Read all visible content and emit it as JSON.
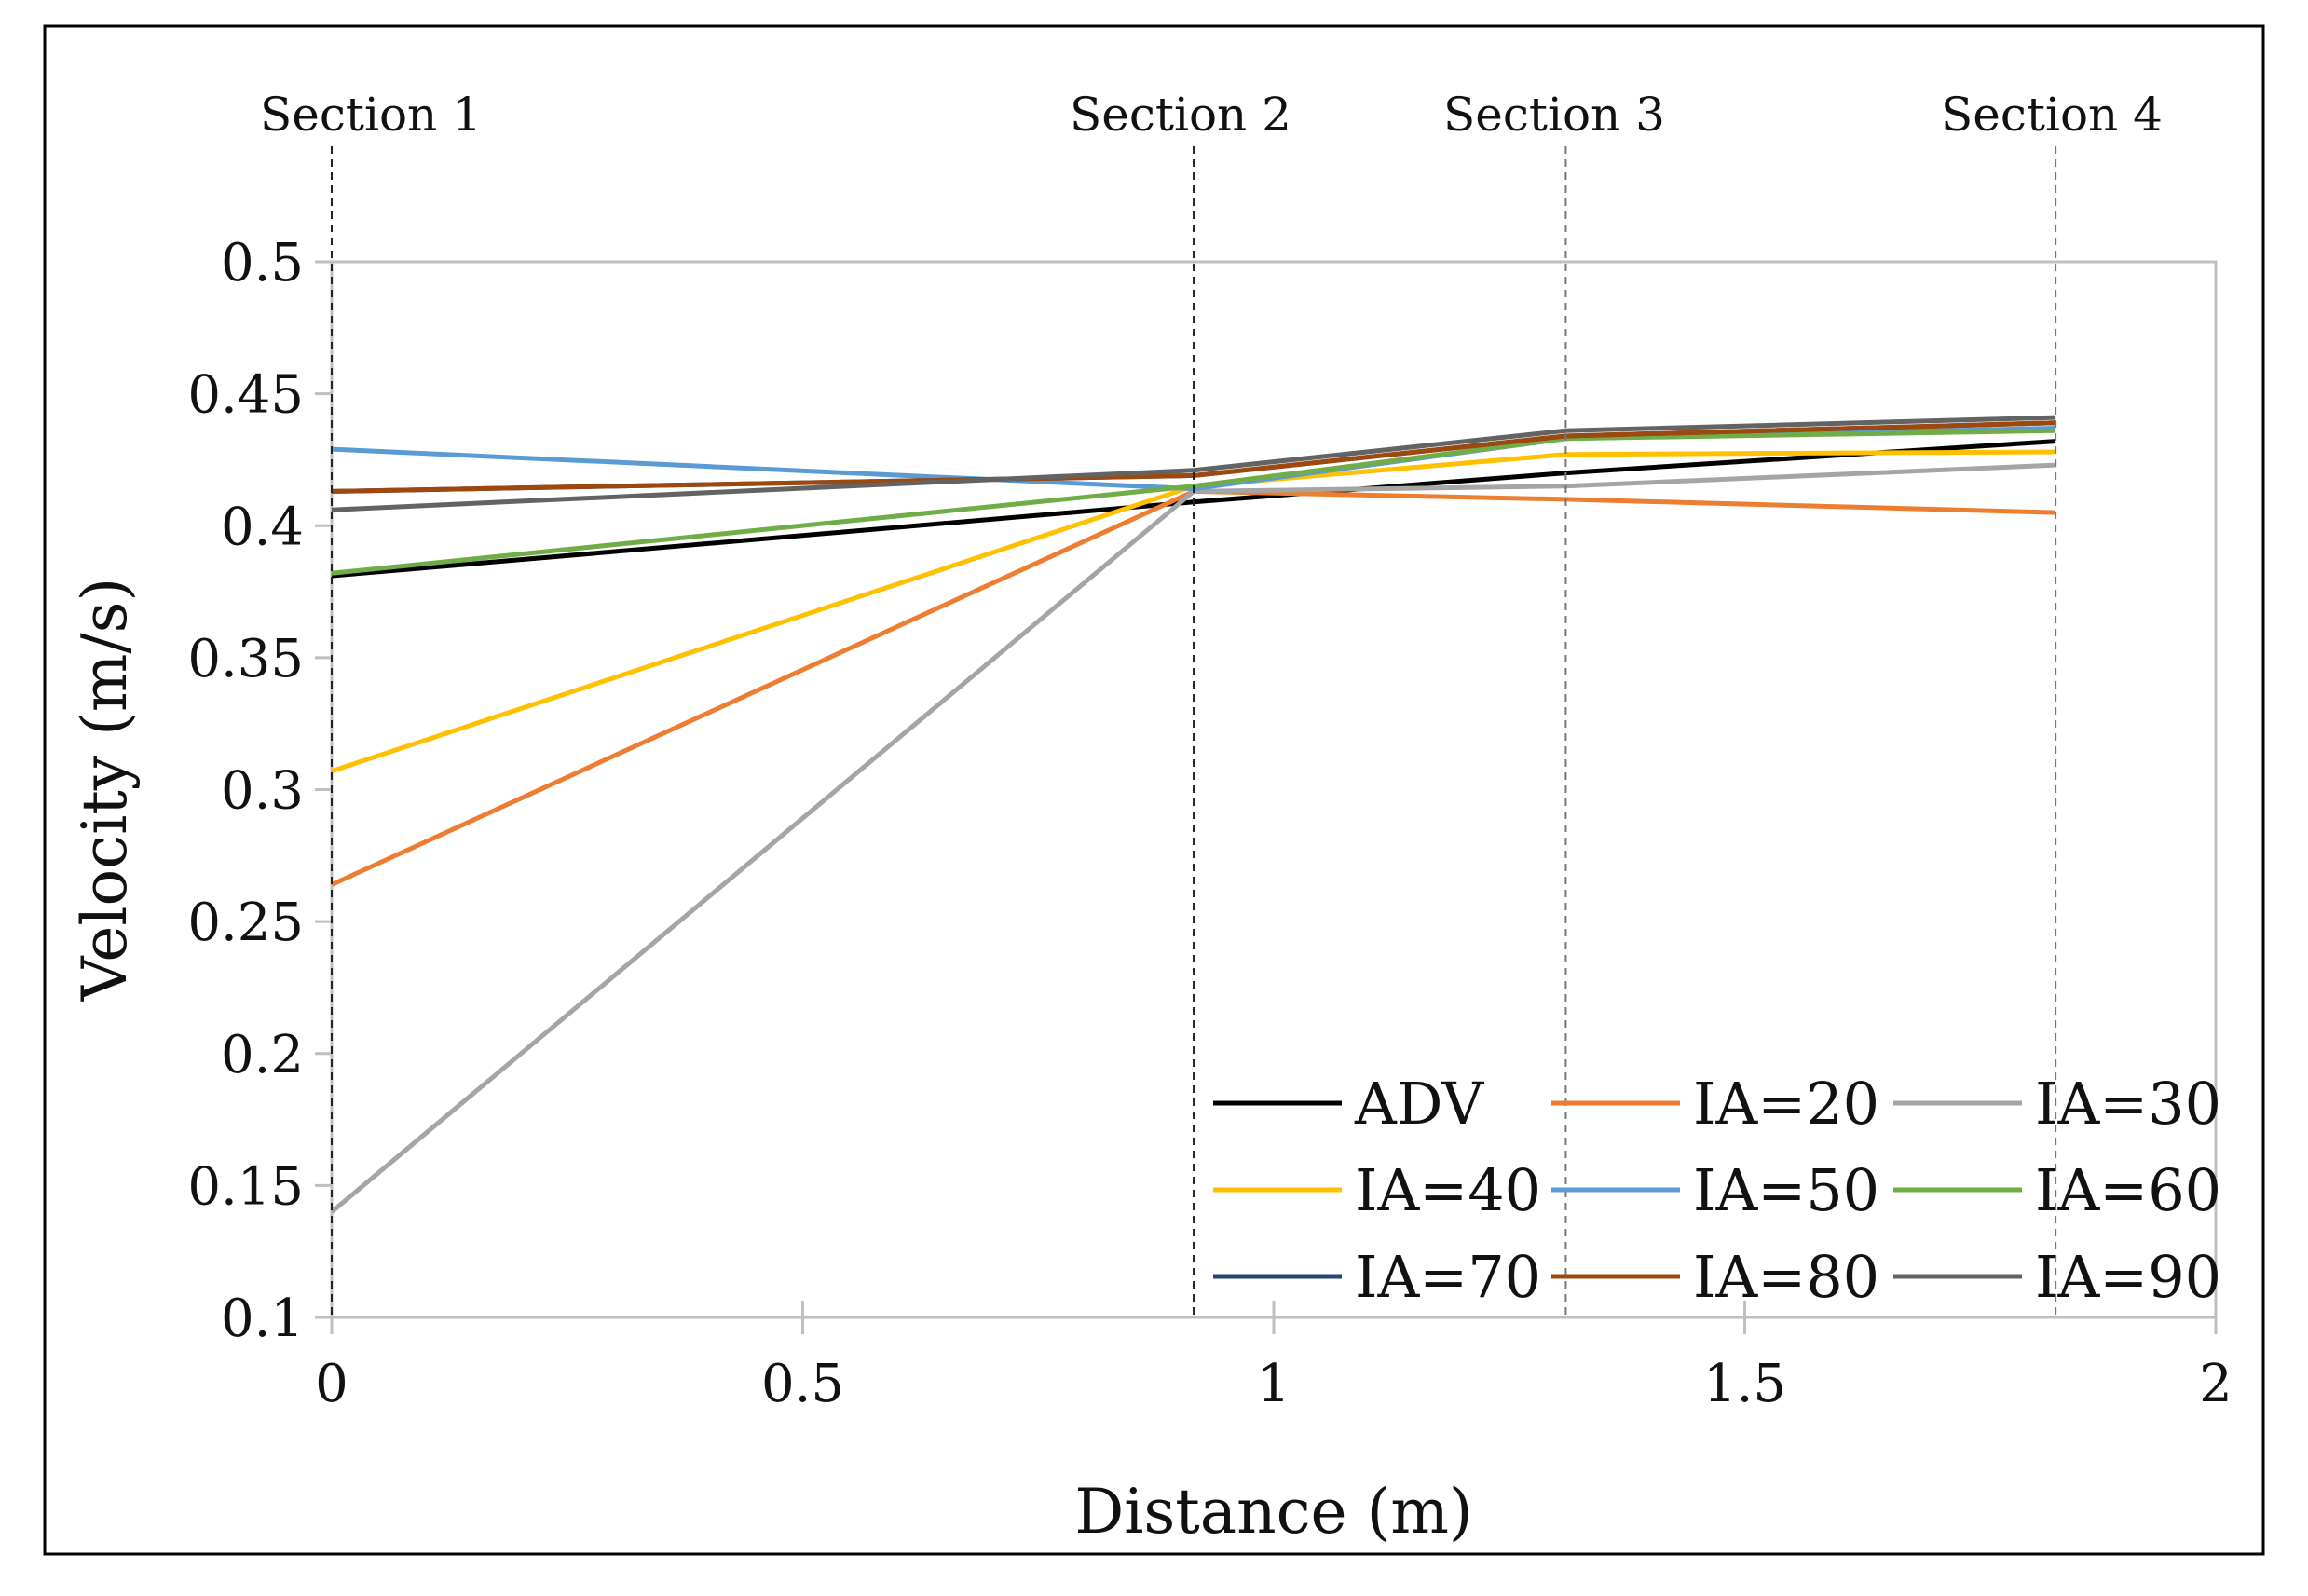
{
  "chart_data": {
    "type": "line",
    "title": "",
    "xlabel": "Distance (m)",
    "ylabel": "Velocity (m/s)",
    "xlim": [
      0,
      2
    ],
    "ylim": [
      0.1,
      0.5
    ],
    "x_ticks": [
      "0",
      "0.5",
      "1",
      "1.5",
      "2"
    ],
    "y_ticks": [
      "0.1",
      "0.15",
      "0.2",
      "0.25",
      "0.3",
      "0.35",
      "0.4",
      "0.45",
      "0.5"
    ],
    "sections": [
      {
        "label": "Section 1",
        "x": 0
      },
      {
        "label": "Section 2",
        "x": 0.915
      },
      {
        "label": "Section 3",
        "x": 1.31
      },
      {
        "label": "Section 4",
        "x": 1.83
      }
    ],
    "x": [
      0,
      0.915,
      1.31,
      1.83
    ],
    "series": [
      {
        "name": "ADV",
        "color": "#000000",
        "values": [
          0.381,
          0.409,
          0.42,
          0.432
        ]
      },
      {
        "name": "IA=20",
        "color": "#ED7D31",
        "values": [
          0.264,
          0.413,
          0.41,
          0.405
        ]
      },
      {
        "name": "IA=30",
        "color": "#A5A5A5",
        "values": [
          0.14,
          0.413,
          0.415,
          0.423
        ]
      },
      {
        "name": "IA=40",
        "color": "#FFC000",
        "values": [
          0.307,
          0.415,
          0.427,
          0.428
        ]
      },
      {
        "name": "IA=50",
        "color": "#5B9BD5",
        "values": [
          0.429,
          0.414,
          0.433,
          0.437
        ]
      },
      {
        "name": "IA=60",
        "color": "#70AD47",
        "values": [
          0.382,
          0.415,
          0.433,
          0.436
        ]
      },
      {
        "name": "IA=70",
        "color": "#264478",
        "values": [
          0.413,
          0.419,
          0.434,
          0.439
        ]
      },
      {
        "name": "IA=80",
        "color": "#9E480E",
        "values": [
          0.413,
          0.419,
          0.434,
          0.439
        ]
      },
      {
        "name": "IA=90",
        "color": "#636363",
        "values": [
          0.406,
          0.421,
          0.436,
          0.441
        ]
      }
    ],
    "legend": {
      "placement": "bottom-right",
      "columns": 3
    }
  }
}
